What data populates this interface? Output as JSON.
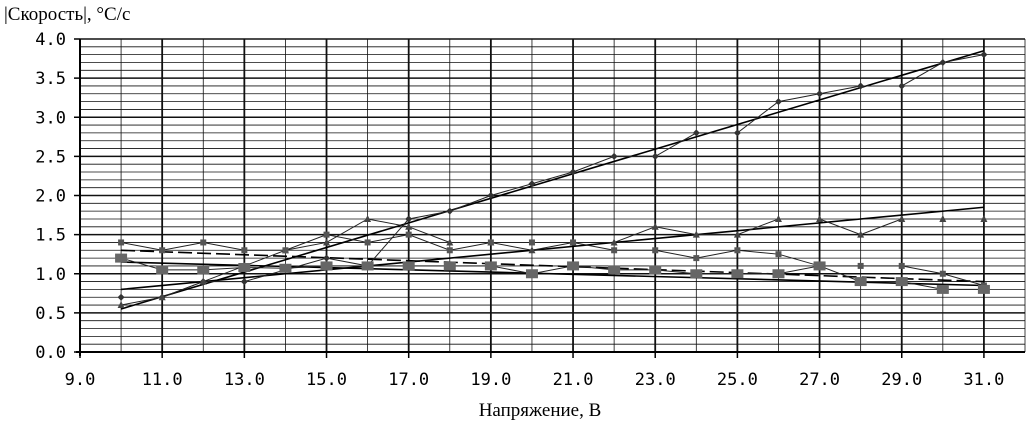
{
  "chart_data": {
    "type": "line",
    "ylabel": "|Скорость|,  °С/с",
    "xlabel": "Напряжение,  В",
    "xlim": [
      9,
      32
    ],
    "ylim": [
      0,
      4
    ],
    "x_ticks": [
      "9.0",
      "11.0",
      "13.0",
      "15.0",
      "17.0",
      "19.0",
      "21.0",
      "23.0",
      "25.0",
      "27.0",
      "29.0",
      "31.0"
    ],
    "y_ticks": [
      "0.0",
      "0.5",
      "1.0",
      "1.5",
      "2.0",
      "2.5",
      "3.0",
      "3.5",
      "4.0"
    ],
    "grid": true,
    "series": [
      {
        "marker": "diamond",
        "x": [
          10,
          11,
          12,
          13,
          14,
          15,
          16,
          17,
          18,
          19,
          20,
          21,
          22,
          23,
          24,
          25,
          26,
          27,
          28,
          29,
          30,
          31
        ],
        "values": [
          0.7,
          0.7,
          0.9,
          0.9,
          1.05,
          1.2,
          1.1,
          1.7,
          1.8,
          2.0,
          2.15,
          2.3,
          2.5,
          2.5,
          2.8,
          2.8,
          3.2,
          3.3,
          3.4,
          3.4,
          3.7,
          3.8
        ],
        "trend": [
          0.55,
          3.85
        ]
      },
      {
        "marker": "triangle",
        "x": [
          10,
          11,
          12,
          13,
          14,
          15,
          16,
          17,
          18,
          19,
          20,
          21,
          22,
          23,
          24,
          25,
          26,
          27,
          28,
          29,
          30,
          31
        ],
        "values": [
          0.6,
          0.7,
          0.9,
          1.1,
          1.3,
          1.4,
          1.7,
          1.6,
          1.4,
          1.4,
          1.3,
          1.4,
          1.4,
          1.6,
          1.5,
          1.5,
          1.7,
          1.7,
          1.5,
          1.7,
          1.7,
          1.7
        ],
        "trend": [
          0.8,
          1.85
        ]
      },
      {
        "marker": "small-square",
        "x": [
          10,
          11,
          12,
          13,
          14,
          15,
          16,
          17,
          18,
          19,
          20,
          21,
          22,
          23,
          24,
          25,
          26,
          27,
          28,
          29,
          30,
          31
        ],
        "values": [
          1.4,
          1.3,
          1.4,
          1.3,
          1.3,
          1.5,
          1.4,
          1.5,
          1.3,
          1.4,
          1.4,
          1.4,
          1.3,
          1.3,
          1.2,
          1.3,
          1.25,
          1.1,
          1.1,
          1.1,
          1.0,
          0.85
        ],
        "trend": [
          1.3,
          0.9
        ]
      },
      {
        "marker": "square",
        "x": [
          10,
          11,
          12,
          13,
          14,
          15,
          16,
          17,
          18,
          19,
          20,
          21,
          22,
          23,
          24,
          25,
          26,
          27,
          28,
          29,
          30,
          31
        ],
        "values": [
          1.2,
          1.05,
          1.05,
          1.08,
          1.07,
          1.1,
          1.1,
          1.1,
          1.1,
          1.1,
          1.0,
          1.1,
          1.05,
          1.05,
          1.0,
          1.0,
          1.0,
          1.1,
          0.9,
          0.9,
          0.8,
          0.8
        ],
        "trend": [
          1.15,
          0.85
        ]
      }
    ],
    "colors": {
      "line": "#222222",
      "grid": "#111111",
      "background": "#ffffff"
    }
  }
}
